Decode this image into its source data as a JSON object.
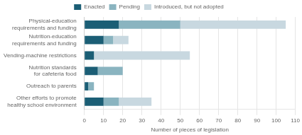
{
  "chart_data": {
    "type": "bar",
    "orientation": "horizontal",
    "stacked": true,
    "categories": [
      "Other efforts to promote\nhealthy school environment",
      "Outreach to parents",
      "Nutrition standards\nfor cafeteria food",
      "Vending-machine restrictions",
      "Nutrition-education\nrequirements and funding",
      "Physical-education\nrequirements and funding"
    ],
    "series": [
      {
        "name": "Enacted",
        "color": "#1b5e75",
        "values": [
          10,
          2,
          7,
          5,
          10,
          18
        ]
      },
      {
        "name": "Pending",
        "color": "#8ab4c0",
        "values": [
          8,
          3,
          13,
          0,
          5,
          32
        ]
      },
      {
        "name": "Introduced, but not adopted",
        "color": "#c8d8e0",
        "values": [
          17,
          0,
          0,
          50,
          8,
          55
        ]
      }
    ],
    "xlabel": "Number of pieces of legislation",
    "xlim": [
      0,
      110
    ],
    "xticks": [
      0,
      10,
      20,
      30,
      40,
      50,
      60,
      70,
      80,
      90,
      100,
      110
    ],
    "grid": true,
    "legend": "top"
  }
}
